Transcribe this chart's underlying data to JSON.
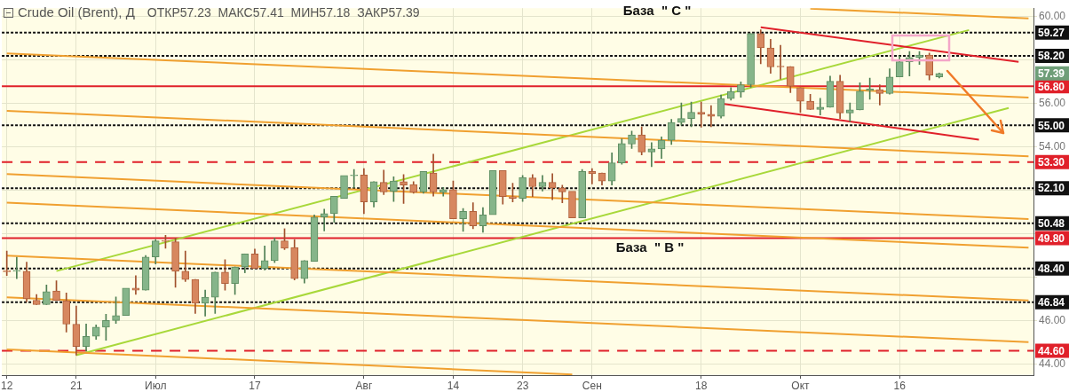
{
  "chart_data": {
    "type": "candlestick",
    "title": "Crude Oil (Brent), Д",
    "subtitle": "ОТКР57.23  МАКС57.41  МИН57.18  ЗАКР57.39",
    "annotations": [
      "База  \" C \"",
      "База  \" B \"",
      {
        "text": "57.39",
        "y": 57.39
      }
    ],
    "categories": [
      "12",
      null,
      null,
      null,
      null,
      null,
      null,
      "21",
      null,
      null,
      null,
      null,
      null,
      null,
      null,
      "Июл",
      null,
      null,
      null,
      null,
      null,
      null,
      null,
      null,
      null,
      "17",
      null,
      null,
      null,
      null,
      null,
      null,
      null,
      null,
      null,
      null,
      "Авг",
      null,
      null,
      null,
      null,
      null,
      null,
      null,
      null,
      "14",
      null,
      null,
      null,
      null,
      null,
      null,
      "23",
      null,
      null,
      null,
      null,
      null,
      null,
      "Сен",
      null,
      null,
      null,
      null,
      null,
      null,
      null,
      null,
      null,
      null,
      "18",
      null,
      null,
      null,
      null,
      null,
      null,
      null,
      null,
      null,
      "Окт",
      null,
      null,
      null,
      null,
      null,
      null,
      null,
      null,
      null,
      "16",
      null,
      null,
      null,
      null,
      null,
      null,
      null,
      null,
      null,
      null,
      null,
      null,
      null
    ],
    "ohlc": [
      [
        48.27,
        49.2,
        48.07,
        48.25
      ],
      [
        48.27,
        48.91,
        47.93,
        48.28
      ],
      [
        48.27,
        48.69,
        46.87,
        47.0
      ],
      [
        46.93,
        47.2,
        46.73,
        46.73
      ],
      [
        46.73,
        47.64,
        46.73,
        47.33
      ],
      [
        47.36,
        47.83,
        46.93,
        46.93
      ],
      [
        46.91,
        47.27,
        45.47,
        45.83
      ],
      [
        45.83,
        46.67,
        44.4,
        44.8
      ],
      [
        44.8,
        45.84,
        44.6,
        45.27
      ],
      [
        45.27,
        45.8,
        45.13,
        45.69
      ],
      [
        45.69,
        46.29,
        45.09,
        46.0
      ],
      [
        46.0,
        47.09,
        45.87,
        46.23
      ],
      [
        46.23,
        47.49,
        46.23,
        47.49
      ],
      [
        47.49,
        48.07,
        47.2,
        47.4
      ],
      [
        47.4,
        49.0,
        47.4,
        48.93
      ],
      [
        48.93,
        49.73,
        48.6,
        49.67
      ],
      [
        49.67,
        49.93,
        49.33,
        49.65
      ],
      [
        49.63,
        49.8,
        47.53,
        48.27
      ],
      [
        48.27,
        49.2,
        47.8,
        47.89
      ],
      [
        47.89,
        47.89,
        46.33,
        46.8
      ],
      [
        46.8,
        47.4,
        46.2,
        47.07
      ],
      [
        47.07,
        48.23,
        46.33,
        48.23
      ],
      [
        48.23,
        48.8,
        47.4,
        47.71
      ],
      [
        47.71,
        48.47,
        47.2,
        48.47
      ],
      [
        48.47,
        49.07,
        48.2,
        49.07
      ],
      [
        49.07,
        49.29,
        48.4,
        48.4
      ],
      [
        48.4,
        49.44,
        48.33,
        48.76
      ],
      [
        48.76,
        49.8,
        48.67,
        49.67
      ],
      [
        49.67,
        50.23,
        49.27,
        49.33
      ],
      [
        49.36,
        49.73,
        47.87,
        47.93
      ],
      [
        47.93,
        48.76,
        47.73,
        48.76
      ],
      [
        48.73,
        50.87,
        48.73,
        50.77
      ],
      [
        50.77,
        51.13,
        50.13,
        50.93
      ],
      [
        50.93,
        51.73,
        50.53,
        51.73
      ],
      [
        51.63,
        52.69,
        51.63,
        52.69
      ],
      [
        52.67,
        52.96,
        52.13,
        52.69
      ],
      [
        52.71,
        53.0,
        50.93,
        51.47
      ],
      [
        51.47,
        52.4,
        51.23,
        52.4
      ],
      [
        52.37,
        52.93,
        51.8,
        51.93
      ],
      [
        51.96,
        52.63,
        51.49,
        52.43
      ],
      [
        52.4,
        52.73,
        51.4,
        52.24
      ],
      [
        52.27,
        52.4,
        51.87,
        51.91
      ],
      [
        51.93,
        52.87,
        51.87,
        52.87
      ],
      [
        52.8,
        53.67,
        51.73,
        51.93
      ],
      [
        51.91,
        52.13,
        51.73,
        52.03
      ],
      [
        52.03,
        52.43,
        50.69,
        50.69
      ],
      [
        50.69,
        51.16,
        50.11,
        51.03
      ],
      [
        51.03,
        51.43,
        50.23,
        50.36
      ],
      [
        50.36,
        51.2,
        50.07,
        50.87
      ],
      [
        50.87,
        52.91,
        50.87,
        52.91
      ],
      [
        52.91,
        52.91,
        51.36,
        51.71
      ],
      [
        51.71,
        52.33,
        51.47,
        51.63
      ],
      [
        51.63,
        52.69,
        51.49,
        52.6
      ],
      [
        52.57,
        52.73,
        51.71,
        52.17
      ],
      [
        52.17,
        52.69,
        51.97,
        52.37
      ],
      [
        52.37,
        52.77,
        51.57,
        52.11
      ],
      [
        52.11,
        52.24,
        51.43,
        51.93
      ],
      [
        51.96,
        51.96,
        50.73,
        50.73
      ],
      [
        50.73,
        52.96,
        50.73,
        52.87
      ],
      [
        52.87,
        53.0,
        52.29,
        52.77
      ],
      [
        52.8,
        52.8,
        52.24,
        52.43
      ],
      [
        52.43,
        53.73,
        52.24,
        53.27
      ],
      [
        53.27,
        54.37,
        53.2,
        54.16
      ],
      [
        54.13,
        54.73,
        53.93,
        54.56
      ],
      [
        54.56,
        54.93,
        53.63,
        53.77
      ],
      [
        53.77,
        54.2,
        53.09,
        53.91
      ],
      [
        53.91,
        54.47,
        53.47,
        54.31
      ],
      [
        54.31,
        55.27,
        54.11,
        55.13
      ],
      [
        55.13,
        56.03,
        55.0,
        55.31
      ],
      [
        55.31,
        56.07,
        54.93,
        55.6
      ],
      [
        55.6,
        56.07,
        54.91,
        55.51
      ],
      [
        55.51,
        55.91,
        54.93,
        55.41
      ],
      [
        55.41,
        56.4,
        55.33,
        56.23
      ],
      [
        56.23,
        56.73,
        56.16,
        56.56
      ],
      [
        56.53,
        57.0,
        56.29,
        56.87
      ],
      [
        56.87,
        59.23,
        56.75,
        59.23
      ],
      [
        59.23,
        59.4,
        57.84,
        58.57
      ],
      [
        58.57,
        58.96,
        57.4,
        57.69
      ],
      [
        57.71,
        58.69,
        57.13,
        57.69
      ],
      [
        57.71,
        57.71,
        56.51,
        56.8
      ],
      [
        56.73,
        56.73,
        55.6,
        56.11
      ],
      [
        56.11,
        56.43,
        55.73,
        55.73
      ],
      [
        55.73,
        56.24,
        55.47,
        55.84
      ],
      [
        55.83,
        57.27,
        55.83,
        57.03
      ],
      [
        57.03,
        57.31,
        55.31,
        55.57
      ],
      [
        55.57,
        56.03,
        55.17,
        55.71
      ],
      [
        55.71,
        56.96,
        55.71,
        56.57
      ],
      [
        56.6,
        57.17,
        56.2,
        56.67
      ],
      [
        56.64,
        56.87,
        55.93,
        56.47
      ],
      [
        56.47,
        57.6,
        56.43,
        57.23
      ],
      [
        57.23,
        58.2,
        57.23,
        57.93
      ],
      [
        57.93,
        58.4,
        57.27,
        58.13
      ],
      [
        58.13,
        58.4,
        57.8,
        58.24
      ],
      [
        58.24,
        58.33,
        57.09,
        57.31
      ],
      [
        57.23,
        57.41,
        57.18,
        57.39
      ],
      null,
      null,
      null,
      null,
      null,
      null,
      null,
      null,
      null
    ],
    "series": [
      {
        "type": "line",
        "color": "#f0a030",
        "values": [
          null,
          null,
          null,
          null,
          null,
          null,
          null,
          null,
          null,
          null,
          null,
          null,
          null,
          null,
          null,
          null,
          null,
          null,
          null,
          null,
          null,
          null,
          null,
          null,
          null,
          null,
          null,
          null,
          null,
          null,
          null,
          null,
          null,
          null,
          null,
          null,
          null,
          null,
          null,
          null,
          null,
          null,
          null,
          null,
          null,
          null,
          null,
          null,
          null,
          null,
          null,
          null,
          null,
          null,
          null,
          null,
          null,
          null,
          null,
          null,
          null,
          null,
          null,
          null,
          null,
          null,
          null,
          null,
          null,
          null,
          null,
          null,
          null,
          null,
          null,
          null,
          null,
          null,
          null,
          null,
          null,
          60.38,
          null,
          null,
          null,
          null,
          null,
          null,
          null,
          null,
          null,
          null,
          null,
          null,
          null,
          null,
          null,
          null,
          null,
          null,
          null,
          null,
          null,
          59.93
        ]
      },
      {
        "type": "line",
        "color": "#f0a030",
        "values": [
          58.31,
          null,
          null,
          null,
          null,
          null,
          null,
          null,
          null,
          null,
          null,
          null,
          null,
          null,
          null,
          null,
          null,
          null,
          null,
          null,
          null,
          null,
          null,
          null,
          null,
          null,
          null,
          null,
          null,
          null,
          null,
          null,
          null,
          null,
          null,
          null,
          null,
          null,
          null,
          null,
          null,
          null,
          null,
          null,
          null,
          null,
          null,
          null,
          null,
          null,
          null,
          null,
          null,
          null,
          null,
          null,
          null,
          null,
          null,
          null,
          null,
          null,
          null,
          null,
          null,
          null,
          null,
          null,
          null,
          null,
          null,
          null,
          null,
          null,
          null,
          null,
          null,
          null,
          null,
          null,
          null,
          null,
          null,
          null,
          null,
          null,
          null,
          null,
          null,
          null,
          null,
          null,
          null,
          null,
          null,
          null,
          null,
          null,
          null,
          null,
          null,
          null,
          null,
          56.28
        ]
      },
      {
        "type": "line",
        "color": "#f0a030",
        "values": [
          55.67,
          null,
          null,
          null,
          null,
          null,
          null,
          null,
          null,
          null,
          null,
          null,
          null,
          null,
          null,
          null,
          null,
          null,
          null,
          null,
          null,
          null,
          null,
          null,
          null,
          null,
          null,
          null,
          null,
          null,
          null,
          null,
          null,
          null,
          null,
          null,
          null,
          null,
          null,
          null,
          null,
          null,
          null,
          null,
          null,
          null,
          null,
          null,
          null,
          null,
          null,
          null,
          null,
          null,
          null,
          null,
          null,
          null,
          null,
          null,
          null,
          null,
          null,
          null,
          null,
          null,
          null,
          null,
          null,
          null,
          null,
          null,
          null,
          null,
          null,
          null,
          null,
          null,
          null,
          null,
          null,
          null,
          null,
          null,
          null,
          null,
          null,
          null,
          null,
          null,
          null,
          null,
          null,
          null,
          null,
          null,
          null,
          null,
          null,
          null,
          null,
          null,
          null,
          53.57
        ]
      },
      {
        "type": "line",
        "color": "#f0a030",
        "values": [
          52.75,
          null,
          null,
          null,
          null,
          null,
          null,
          null,
          null,
          null,
          null,
          null,
          null,
          null,
          null,
          null,
          null,
          null,
          null,
          null,
          null,
          null,
          null,
          null,
          null,
          null,
          null,
          null,
          null,
          null,
          null,
          null,
          null,
          null,
          null,
          null,
          null,
          null,
          null,
          null,
          null,
          null,
          null,
          null,
          null,
          null,
          null,
          null,
          null,
          null,
          null,
          null,
          null,
          null,
          null,
          null,
          null,
          null,
          null,
          null,
          null,
          null,
          null,
          null,
          null,
          null,
          null,
          null,
          null,
          null,
          null,
          null,
          null,
          null,
          null,
          null,
          null,
          null,
          null,
          null,
          null,
          null,
          null,
          null,
          null,
          null,
          null,
          null,
          null,
          null,
          null,
          null,
          null,
          null,
          null,
          null,
          null,
          null,
          null,
          null,
          null,
          null,
          null,
          50.68
        ]
      },
      {
        "type": "line",
        "color": "#f0a030",
        "values": [
          51.43,
          null,
          null,
          null,
          null,
          null,
          null,
          null,
          null,
          null,
          null,
          null,
          null,
          null,
          null,
          null,
          null,
          null,
          null,
          null,
          null,
          null,
          null,
          null,
          null,
          null,
          null,
          null,
          null,
          null,
          null,
          null,
          null,
          null,
          null,
          null,
          null,
          null,
          null,
          null,
          null,
          null,
          null,
          null,
          null,
          null,
          null,
          null,
          null,
          null,
          null,
          null,
          null,
          null,
          null,
          null,
          null,
          null,
          null,
          null,
          null,
          null,
          null,
          null,
          null,
          null,
          null,
          null,
          null,
          null,
          null,
          null,
          null,
          null,
          null,
          null,
          null,
          null,
          null,
          null,
          null,
          null,
          null,
          null,
          null,
          null,
          null,
          null,
          null,
          null,
          null,
          null,
          null,
          null,
          null,
          null,
          null,
          null,
          null,
          null,
          null,
          null,
          null,
          49.36
        ]
      },
      {
        "type": "line",
        "color": "#f0a030",
        "values": [
          48.99,
          null,
          null,
          null,
          null,
          null,
          null,
          null,
          null,
          null,
          null,
          null,
          null,
          null,
          null,
          null,
          null,
          null,
          null,
          null,
          null,
          null,
          null,
          null,
          null,
          null,
          null,
          null,
          null,
          null,
          null,
          null,
          null,
          null,
          null,
          null,
          null,
          null,
          null,
          null,
          null,
          null,
          null,
          null,
          null,
          null,
          null,
          null,
          null,
          null,
          null,
          null,
          null,
          null,
          null,
          null,
          null,
          null,
          null,
          null,
          null,
          null,
          null,
          null,
          null,
          null,
          null,
          null,
          null,
          null,
          null,
          null,
          null,
          null,
          null,
          null,
          null,
          null,
          null,
          null,
          null,
          null,
          null,
          null,
          null,
          null,
          null,
          null,
          null,
          null,
          null,
          null,
          null,
          null,
          null,
          null,
          null,
          null,
          null,
          null,
          null,
          null,
          null,
          46.92
        ]
      },
      {
        "type": "line",
        "color": "#f0a030",
        "values": [
          47.07,
          null,
          null,
          null,
          null,
          null,
          null,
          null,
          null,
          null,
          null,
          null,
          null,
          null,
          null,
          null,
          null,
          null,
          null,
          null,
          null,
          null,
          null,
          null,
          null,
          null,
          null,
          null,
          null,
          null,
          null,
          null,
          null,
          null,
          null,
          null,
          null,
          null,
          null,
          null,
          null,
          null,
          null,
          null,
          null,
          null,
          null,
          null,
          null,
          null,
          null,
          null,
          null,
          null,
          null,
          null,
          null,
          null,
          null,
          null,
          null,
          null,
          null,
          null,
          null,
          null,
          null,
          null,
          null,
          null,
          null,
          null,
          null,
          null,
          null,
          null,
          null,
          null,
          null,
          null,
          null,
          null,
          null,
          null,
          null,
          null,
          null,
          null,
          null,
          null,
          null,
          null,
          null,
          null,
          null,
          null,
          null,
          null,
          null,
          null,
          null,
          null,
          null,
          45.0
        ]
      },
      {
        "type": "line",
        "color": "#f0a030",
        "values": [
          44.67,
          null,
          null,
          null,
          null,
          null,
          null,
          null,
          null,
          null,
          null,
          null,
          null,
          null,
          null,
          null,
          null,
          null,
          null,
          null,
          null,
          null,
          null,
          null,
          null,
          null,
          null,
          null,
          null,
          null,
          null,
          null,
          null,
          null,
          null,
          null,
          null,
          null,
          null,
          null,
          null,
          null,
          null,
          null,
          null,
          null,
          null,
          null,
          null,
          null,
          null,
          null,
          null,
          null,
          null,
          null,
          null,
          43.51,
          null,
          null,
          null,
          null,
          null,
          null,
          null,
          null,
          null,
          null,
          null,
          null,
          null,
          null,
          null,
          null,
          null,
          null,
          null,
          null,
          null,
          null,
          null,
          null,
          null,
          null,
          null,
          null,
          null,
          null,
          null,
          null,
          null,
          null,
          null,
          null,
          null,
          null,
          null,
          null,
          null,
          null,
          null,
          null,
          null,
          null
        ]
      },
      {
        "type": "line",
        "color": "#e0202a",
        "values": [
          null,
          null,
          null,
          null,
          null,
          null,
          null,
          null,
          null,
          null,
          null,
          null,
          null,
          null,
          null,
          null,
          null,
          null,
          null,
          null,
          null,
          null,
          null,
          null,
          null,
          null,
          null,
          null,
          null,
          null,
          null,
          null,
          null,
          null,
          null,
          null,
          null,
          null,
          null,
          null,
          null,
          null,
          null,
          null,
          null,
          null,
          null,
          null,
          null,
          null,
          null,
          null,
          null,
          null,
          null,
          null,
          null,
          null,
          null,
          null,
          null,
          null,
          null,
          null,
          null,
          null,
          null,
          null,
          null,
          null,
          null,
          null,
          null,
          null,
          null,
          null,
          59.52,
          null,
          null,
          null,
          null,
          null,
          null,
          null,
          null,
          null,
          null,
          null,
          null,
          null,
          null,
          null,
          null,
          null,
          null,
          null,
          null,
          null,
          null,
          null,
          null,
          null,
          57.92,
          null
        ]
      },
      {
        "type": "line",
        "color": "#e0202a",
        "values": [
          null,
          null,
          null,
          null,
          null,
          null,
          null,
          null,
          null,
          null,
          null,
          null,
          null,
          null,
          null,
          null,
          null,
          null,
          null,
          null,
          null,
          null,
          null,
          null,
          null,
          null,
          null,
          null,
          null,
          null,
          null,
          null,
          null,
          null,
          null,
          null,
          null,
          null,
          null,
          null,
          null,
          null,
          null,
          null,
          null,
          null,
          null,
          null,
          null,
          null,
          null,
          null,
          null,
          null,
          null,
          null,
          null,
          null,
          null,
          null,
          null,
          null,
          null,
          null,
          null,
          null,
          null,
          null,
          null,
          null,
          null,
          null,
          56.0,
          null,
          null,
          null,
          null,
          null,
          null,
          null,
          null,
          null,
          null,
          null,
          null,
          null,
          null,
          null,
          null,
          null,
          null,
          null,
          null,
          null,
          null,
          null,
          null,
          null,
          54.34,
          null,
          null,
          null,
          null,
          null
        ]
      },
      {
        "type": "line",
        "color": "#a8d83a",
        "values": [
          null,
          null,
          null,
          null,
          null,
          48.28,
          null,
          null,
          null,
          null,
          null,
          null,
          null,
          null,
          null,
          null,
          null,
          null,
          null,
          null,
          null,
          null,
          null,
          null,
          null,
          null,
          null,
          null,
          null,
          null,
          null,
          null,
          null,
          null,
          null,
          null,
          null,
          null,
          null,
          null,
          null,
          null,
          null,
          null,
          null,
          null,
          null,
          null,
          null,
          null,
          null,
          null,
          null,
          null,
          null,
          null,
          null,
          null,
          null,
          null,
          null,
          null,
          null,
          null,
          null,
          null,
          null,
          null,
          null,
          null,
          null,
          null,
          null,
          null,
          null,
          null,
          null,
          null,
          null,
          null,
          null,
          null,
          null,
          null,
          null,
          null,
          null,
          null,
          null,
          null,
          null,
          null,
          null,
          null,
          null,
          null,
          null,
          59.39,
          null,
          null,
          null,
          null,
          null,
          null
        ]
      },
      {
        "type": "line",
        "color": "#a8d83a",
        "values": [
          null,
          null,
          null,
          null,
          null,
          null,
          null,
          44.4,
          null,
          null,
          null,
          null,
          null,
          null,
          null,
          null,
          null,
          null,
          null,
          null,
          null,
          null,
          null,
          null,
          null,
          null,
          null,
          null,
          null,
          null,
          null,
          null,
          null,
          null,
          null,
          null,
          null,
          null,
          null,
          null,
          null,
          null,
          null,
          null,
          null,
          null,
          null,
          null,
          null,
          null,
          null,
          null,
          null,
          null,
          null,
          null,
          null,
          null,
          null,
          null,
          null,
          null,
          null,
          null,
          null,
          null,
          null,
          null,
          null,
          null,
          null,
          null,
          null,
          null,
          null,
          null,
          null,
          null,
          null,
          null,
          null,
          null,
          null,
          null,
          null,
          null,
          null,
          null,
          null,
          null,
          null,
          null,
          null,
          null,
          null,
          null,
          null,
          null,
          null,
          null,
          null,
          55.8,
          null,
          null
        ]
      }
    ],
    "ylim": [
      43.48,
      60.4
    ],
    "yticks": [
      {
        "value": 44,
        "label": "44.00"
      },
      {
        "value": 46,
        "label": "46.00"
      },
      {
        "value": 48,
        "label": null
      },
      {
        "value": 50,
        "label": null
      },
      {
        "value": 52,
        "label": null
      },
      {
        "value": 54,
        "label": "54.00"
      },
      {
        "value": 56,
        "label": "56.00"
      },
      {
        "value": 58,
        "label": null
      },
      {
        "value": 60,
        "label": "60.00"
      }
    ],
    "ref_lines": [
      {
        "axis": "y",
        "value": 59.27,
        "label": "59.27",
        "color": "#111111",
        "line_style": "dotted"
      },
      {
        "axis": "y",
        "value": 58.2,
        "label": "58.20",
        "color": "#111111",
        "line_style": "dotted"
      },
      {
        "axis": "y",
        "value": 56.8,
        "label": "56.80",
        "color": "#e0202a",
        "line_style": "solid"
      },
      {
        "axis": "y",
        "value": 55.0,
        "label": "55.00",
        "color": "#111111",
        "line_style": "dotted"
      },
      {
        "axis": "y",
        "value": 53.3,
        "label": "53.30",
        "color": "#e0202a",
        "line_style": "dashed"
      },
      {
        "axis": "y",
        "value": 52.1,
        "label": "52.10",
        "color": "#111111",
        "line_style": "dotted"
      },
      {
        "axis": "y",
        "value": 50.48,
        "label": "50.48",
        "color": "#111111",
        "line_style": "dotted"
      },
      {
        "axis": "y",
        "value": 49.8,
        "label": "49.80",
        "color": "#e0202a",
        "line_style": "solid"
      },
      {
        "axis": "y",
        "value": 48.4,
        "label": "48.40",
        "color": "#111111",
        "line_style": "dotted"
      },
      {
        "axis": "y",
        "value": 46.84,
        "label": "46.84",
        "color": "#111111",
        "line_style": "dotted"
      },
      {
        "axis": "y",
        "value": 44.6,
        "label": "44.60",
        "color": "#e0202a",
        "line_style": "dashed"
      }
    ],
    "grid": true,
    "legend": false
  }
}
